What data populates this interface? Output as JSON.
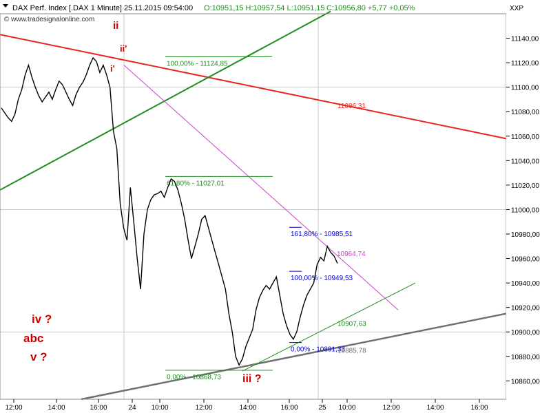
{
  "header": {
    "title": "DAX Perf. Index [.DAX  1 Minute]",
    "datetime": "25.11.2015 09:54:00",
    "ohlc": "O:10951,15 H:10957,54 L:10951,15",
    "close_change": "C:10956,80 +5,77 +0,05%",
    "watermark": "© www.tradesignalonline.com",
    "symbol": "XXP"
  },
  "colors": {
    "price": "#000000",
    "fib_green": "#228b22",
    "fib_blue": "#0000cc",
    "trend_red": "#e8251e",
    "trend_green": "#1e8c1e",
    "trend_gray": "#707070",
    "magenta": "#cc44cc",
    "wave_label": "#cc0000",
    "grid": "#c9c9c9"
  },
  "chart_data": {
    "type": "line",
    "title": "DAX Perf. Index [.DAX  1 Minute]",
    "xlabel": "",
    "ylabel": "",
    "ylim": [
      10845,
      11160
    ],
    "y_ticks": [
      10860,
      10880,
      10900,
      10920,
      10940,
      10960,
      10980,
      11000,
      11020,
      11040,
      11060,
      11080,
      11100,
      11120,
      11140
    ],
    "y_tick_labels": [
      "10860,00",
      "10880,00",
      "10900,00",
      "10920,00",
      "10940,00",
      "10960,00",
      "10980,00",
      "11000,00",
      "11020,00",
      "11040,00",
      "11060,00",
      "11080,00",
      "11100,00",
      "11120,00",
      "11140,00"
    ],
    "x_ticks": [
      "12:00",
      "14:00",
      "16:00",
      "24",
      "10:00",
      "12:00",
      "14:00",
      "16:00",
      "25",
      "10:00",
      "12:00",
      "14:00",
      "16:00"
    ],
    "grid": true,
    "series": [
      {
        "values": [
          11083,
          11079,
          11075,
          11072,
          11078,
          11090,
          11098,
          11110,
          11118,
          11108,
          11100,
          11093,
          11088,
          11092,
          11096,
          11090,
          11098,
          11105,
          11102,
          11096,
          11090,
          11085,
          11094,
          11100,
          11104,
          11110,
          11118,
          11124,
          11121,
          11112,
          11118,
          11110,
          11100,
          11064,
          11050,
          11005,
          10985,
          10975,
          11018,
          10990,
          10960,
          10935,
          10980,
          11000,
          11008,
          11012,
          11013,
          11015,
          11010,
          11018,
          11025,
          11023,
          11016,
          11005,
          10992,
          10975,
          10960,
          10970,
          10980,
          10992,
          10995,
          10985,
          10975,
          10965,
          10955,
          10945,
          10935,
          10915,
          10900,
          10880,
          10873,
          10878,
          10888,
          10895,
          10902,
          10918,
          10928,
          10934,
          10938,
          10935,
          10940,
          10945,
          10930,
          10915,
          10905,
          10898,
          10894,
          10900,
          10912,
          10922,
          10930,
          10935,
          10940,
          10955,
          10961,
          10958,
          10970,
          10965,
          10962,
          10956
        ]
      }
    ],
    "hlines": [
      {
        "value": 11124.85,
        "label": "100,00% - 11124,85"
      },
      {
        "value": 11027.01,
        "label": "61,80% - 11027,01"
      },
      {
        "value": 10868.73,
        "label": "0,00% - 10868,73"
      },
      {
        "value": 10985.51,
        "label": "161,80% - 10985,51"
      },
      {
        "value": 10949.53,
        "label": "100,00% - 10949,53"
      },
      {
        "value": 10891.33,
        "label": "0,00% - 10891,33"
      }
    ],
    "annotations": [
      {
        "text": "11086,31"
      },
      {
        "text": "10964,74"
      },
      {
        "text": "10907,63"
      },
      {
        "text": "10885,78"
      }
    ],
    "wave_labels": [
      "ii",
      "i'",
      "ii'",
      "iii ?",
      "iv ?",
      "abc",
      "v ?"
    ]
  }
}
